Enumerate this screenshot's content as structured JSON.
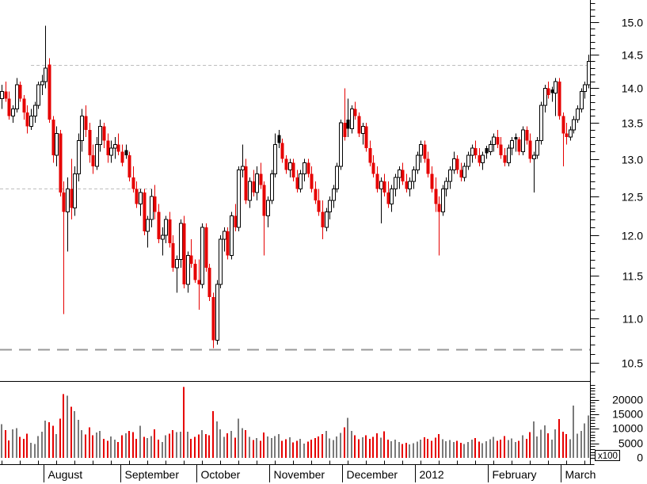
{
  "colors": {
    "background": "#ffffff",
    "axis": "#000000",
    "up_body_fill": "#ffffff",
    "up_body_border": "#000000",
    "down_body": "#e60000",
    "neutral_down_body": "#000000",
    "volume_up": "#7a7a7a",
    "volume_down": "#e60000",
    "dotted_level": "#bdbdbd",
    "dashed_level": "#999999"
  },
  "chart_data": {
    "type": "candlestick",
    "title": "",
    "price_axis": {
      "side": "right",
      "scale": "log",
      "major_labels": [
        15.0,
        14.5,
        14.0,
        13.5,
        13.0,
        12.5,
        12.0,
        11.5,
        11.0,
        10.5
      ],
      "major_step": 0.5,
      "minor_step": 0.1,
      "visible_range": [
        10.31,
        15.36
      ]
    },
    "volume_axis": {
      "major_labels": [
        20000,
        15000,
        10000,
        5000,
        0
      ],
      "major_step": 5000,
      "minor_step": 1000,
      "unit_label": "x100"
    },
    "x_axis": {
      "minor_tick_every_candles": 5,
      "months": [
        {
          "label": "August",
          "start": 12
        },
        {
          "label": "September",
          "start": 33
        },
        {
          "label": "October",
          "start": 54
        },
        {
          "label": "November",
          "start": 74
        },
        {
          "label": "December",
          "start": 94
        },
        {
          "label": "2012",
          "start": 114
        },
        {
          "label": "February",
          "start": 134
        },
        {
          "label": "March",
          "start": 154
        }
      ]
    },
    "levels": [
      {
        "price": 14.35,
        "style": "dotted",
        "start_index": 8,
        "end_index": null
      },
      {
        "price": 12.6,
        "style": "dotted",
        "start_index": 0,
        "end_index": 41
      },
      {
        "price": 10.65,
        "style": "dashed",
        "start_index": 0,
        "end_index": null
      }
    ],
    "columns": [
      "open",
      "high",
      "low",
      "close",
      "volume_x100"
    ],
    "candles": [
      [
        13.85,
        14.05,
        13.7,
        13.95,
        11500
      ],
      [
        13.95,
        14.1,
        13.8,
        13.85,
        9500
      ],
      [
        13.85,
        13.95,
        13.55,
        13.6,
        6000
      ],
      [
        13.6,
        13.75,
        13.5,
        13.7,
        9800
      ],
      [
        13.7,
        14.15,
        13.65,
        14.05,
        10200
      ],
      [
        14.05,
        14.1,
        13.8,
        13.85,
        7200
      ],
      [
        13.85,
        13.9,
        13.55,
        13.65,
        6500
      ],
      [
        13.65,
        13.75,
        13.35,
        13.45,
        8300
      ],
      [
        13.45,
        13.7,
        13.4,
        13.6,
        5200
      ],
      [
        13.6,
        13.8,
        13.5,
        13.75,
        4800
      ],
      [
        13.75,
        14.1,
        13.7,
        14.05,
        7500
      ],
      [
        14.05,
        14.2,
        13.9,
        14.1,
        9000
      ],
      [
        14.1,
        14.95,
        14.0,
        14.3,
        12800
      ],
      [
        14.35,
        14.45,
        13.5,
        13.55,
        12200
      ],
      [
        13.55,
        13.6,
        12.95,
        13.05,
        11000
      ],
      [
        13.05,
        13.45,
        12.9,
        13.35,
        8200
      ],
      [
        13.35,
        13.4,
        12.5,
        12.55,
        13500
      ],
      [
        12.55,
        12.7,
        11.05,
        12.3,
        21900
      ],
      [
        12.3,
        12.75,
        11.8,
        12.6,
        21300
      ],
      [
        12.6,
        13.0,
        12.2,
        12.35,
        17500
      ],
      [
        12.35,
        12.9,
        12.25,
        12.8,
        16000
      ],
      [
        12.8,
        13.35,
        12.7,
        13.25,
        13000
      ],
      [
        13.25,
        13.7,
        13.1,
        13.6,
        9500
      ],
      [
        13.6,
        13.75,
        13.3,
        13.4,
        8000
      ],
      [
        13.4,
        13.5,
        12.95,
        13.05,
        10500
      ],
      [
        13.05,
        13.2,
        12.8,
        12.9,
        7800
      ],
      [
        12.9,
        13.3,
        12.85,
        13.2,
        8700
      ],
      [
        13.2,
        13.55,
        13.1,
        13.45,
        9200
      ],
      [
        13.45,
        13.5,
        13.15,
        13.25,
        6500
      ],
      [
        13.25,
        13.35,
        12.95,
        13.05,
        5800
      ],
      [
        13.05,
        13.25,
        12.95,
        13.15,
        7400
      ],
      [
        13.15,
        13.3,
        13.0,
        13.2,
        6200
      ],
      [
        13.2,
        13.35,
        13.05,
        13.1,
        5500
      ],
      [
        13.1,
        13.2,
        12.9,
        12.95,
        7800
      ],
      [
        13.12,
        13.2,
        13.0,
        13.05,
        8500
      ],
      [
        13.05,
        13.1,
        12.7,
        12.75,
        9200
      ],
      [
        12.75,
        12.9,
        12.55,
        12.6,
        8800
      ],
      [
        12.6,
        12.7,
        12.35,
        12.4,
        6500
      ],
      [
        12.4,
        12.6,
        12.25,
        12.55,
        11000
      ],
      [
        12.55,
        12.6,
        12.0,
        12.05,
        7200
      ],
      [
        12.05,
        12.25,
        11.85,
        12.2,
        6800
      ],
      [
        12.2,
        12.6,
        12.1,
        12.5,
        7500
      ],
      [
        12.5,
        12.65,
        12.2,
        12.3,
        9800
      ],
      [
        12.3,
        12.4,
        11.9,
        11.95,
        6200
      ],
      [
        11.95,
        12.1,
        11.75,
        12.0,
        5400
      ],
      [
        12.0,
        12.25,
        11.9,
        12.2,
        7800
      ],
      [
        12.2,
        12.3,
        11.85,
        11.9,
        8300
      ],
      [
        11.9,
        12.0,
        11.55,
        11.6,
        9500
      ],
      [
        11.6,
        11.75,
        11.3,
        11.7,
        8800
      ],
      [
        11.7,
        12.2,
        11.6,
        12.15,
        9000
      ],
      [
        12.15,
        12.25,
        11.35,
        11.4,
        24300
      ],
      [
        11.4,
        11.8,
        11.3,
        11.75,
        9000
      ],
      [
        11.75,
        11.95,
        11.6,
        11.65,
        6500
      ],
      [
        11.65,
        11.7,
        11.42,
        11.45,
        7200
      ],
      [
        11.45,
        11.7,
        11.1,
        11.4,
        8000
      ],
      [
        11.4,
        12.15,
        11.35,
        12.1,
        9500
      ],
      [
        12.1,
        12.15,
        11.55,
        11.6,
        8200
      ],
      [
        11.6,
        11.65,
        11.2,
        11.25,
        7800
      ],
      [
        11.25,
        11.3,
        10.66,
        10.75,
        16000
      ],
      [
        10.75,
        11.45,
        10.7,
        11.4,
        12500
      ],
      [
        11.4,
        12.0,
        11.35,
        11.95,
        9800
      ],
      [
        11.95,
        12.1,
        11.8,
        12.05,
        7200
      ],
      [
        12.05,
        12.1,
        11.7,
        11.75,
        8500
      ],
      [
        11.75,
        12.3,
        11.7,
        12.25,
        9200
      ],
      [
        12.25,
        12.4,
        12.05,
        12.1,
        7000
      ],
      [
        12.1,
        12.9,
        12.05,
        12.85,
        13500
      ],
      [
        12.85,
        13.2,
        12.75,
        12.9,
        10200
      ],
      [
        12.9,
        13.0,
        12.4,
        12.45,
        9500
      ],
      [
        12.45,
        12.75,
        12.35,
        12.7,
        7200
      ],
      [
        12.7,
        12.85,
        12.5,
        12.55,
        6100
      ],
      [
        12.55,
        12.9,
        12.45,
        12.8,
        6800
      ],
      [
        12.8,
        12.95,
        12.6,
        12.65,
        5900
      ],
      [
        12.65,
        12.7,
        11.75,
        12.25,
        8700
      ],
      [
        12.25,
        12.5,
        12.1,
        12.45,
        7400
      ],
      [
        12.45,
        12.85,
        12.4,
        12.8,
        6800
      ],
      [
        12.8,
        13.35,
        12.75,
        13.2,
        7500
      ],
      [
        13.33,
        13.4,
        13.15,
        13.22,
        8200
      ],
      [
        13.22,
        13.28,
        12.95,
        13.0,
        5900
      ],
      [
        13.0,
        13.05,
        12.8,
        12.85,
        6400
      ],
      [
        12.85,
        13.0,
        12.75,
        12.95,
        7100
      ],
      [
        12.95,
        13.0,
        12.7,
        12.75,
        5300
      ],
      [
        12.75,
        12.85,
        12.55,
        12.6,
        5800
      ],
      [
        12.6,
        12.85,
        12.55,
        12.8,
        6500
      ],
      [
        12.8,
        13.0,
        12.7,
        12.95,
        4900
      ],
      [
        12.95,
        13.0,
        12.75,
        12.8,
        5600
      ],
      [
        12.8,
        12.9,
        12.55,
        12.6,
        6200
      ],
      [
        12.6,
        12.7,
        12.4,
        12.45,
        6800
      ],
      [
        12.45,
        12.6,
        12.25,
        12.3,
        7400
      ],
      [
        12.3,
        12.45,
        11.95,
        12.1,
        8100
      ],
      [
        12.1,
        12.35,
        12.05,
        12.3,
        9200
      ],
      [
        12.3,
        12.5,
        12.2,
        12.45,
        6700
      ],
      [
        12.45,
        12.65,
        12.35,
        12.6,
        6100
      ],
      [
        12.6,
        12.95,
        12.55,
        12.9,
        7300
      ],
      [
        12.9,
        13.55,
        12.85,
        13.5,
        8600
      ],
      [
        13.5,
        14.0,
        13.25,
        13.3,
        10500
      ],
      [
        13.55,
        13.85,
        13.3,
        13.42,
        13800
      ],
      [
        13.42,
        13.75,
        13.35,
        13.7,
        9200
      ],
      [
        13.7,
        13.8,
        13.55,
        13.6,
        7800
      ],
      [
        13.6,
        13.65,
        13.3,
        13.35,
        6400
      ],
      [
        13.35,
        13.5,
        13.2,
        13.45,
        7100
      ],
      [
        13.45,
        13.5,
        13.1,
        13.15,
        7800
      ],
      [
        13.15,
        13.25,
        12.9,
        12.95,
        6500
      ],
      [
        12.95,
        13.05,
        12.75,
        12.8,
        7200
      ],
      [
        12.8,
        12.9,
        12.55,
        12.6,
        8400
      ],
      [
        12.6,
        12.75,
        12.15,
        12.7,
        7000
      ],
      [
        12.7,
        12.8,
        12.5,
        12.55,
        9100
      ],
      [
        12.55,
        12.7,
        12.35,
        12.4,
        6300
      ],
      [
        12.4,
        12.65,
        12.3,
        12.6,
        5700
      ],
      [
        12.6,
        12.8,
        12.5,
        12.75,
        6200
      ],
      [
        12.75,
        12.9,
        12.6,
        12.85,
        5400
      ],
      [
        12.85,
        12.95,
        12.65,
        12.7,
        4800
      ],
      [
        12.7,
        12.8,
        12.55,
        12.6,
        5200
      ],
      [
        12.6,
        12.75,
        12.5,
        12.7,
        4600
      ],
      [
        12.7,
        12.9,
        12.6,
        12.85,
        5000
      ],
      [
        12.85,
        13.1,
        12.8,
        13.05,
        5600
      ],
      [
        13.05,
        13.25,
        12.95,
        13.2,
        6300
      ],
      [
        13.2,
        13.25,
        12.95,
        13.0,
        7100
      ],
      [
        13.0,
        13.1,
        12.75,
        12.8,
        6500
      ],
      [
        12.8,
        12.9,
        12.55,
        12.6,
        5800
      ],
      [
        12.6,
        12.75,
        12.3,
        12.4,
        6900
      ],
      [
        12.4,
        12.5,
        11.75,
        12.3,
        8200
      ],
      [
        12.3,
        12.65,
        12.25,
        12.6,
        6400
      ],
      [
        12.6,
        12.75,
        12.5,
        12.7,
        5700
      ],
      [
        12.7,
        12.9,
        12.6,
        12.85,
        6100
      ],
      [
        12.85,
        13.1,
        12.8,
        13.0,
        5400
      ],
      [
        13.0,
        13.05,
        12.8,
        12.85,
        5900
      ],
      [
        12.85,
        12.95,
        12.7,
        12.75,
        5200
      ],
      [
        12.75,
        12.95,
        12.7,
        12.9,
        4800
      ],
      [
        12.9,
        13.1,
        12.85,
        13.05,
        5500
      ],
      [
        13.05,
        13.2,
        12.95,
        13.15,
        6200
      ],
      [
        13.15,
        13.25,
        13.0,
        13.05,
        6800
      ],
      [
        13.05,
        13.15,
        12.9,
        12.95,
        5600
      ],
      [
        12.95,
        13.1,
        12.85,
        13.05,
        5100
      ],
      [
        13.15,
        13.18,
        13.0,
        13.08,
        5700
      ],
      [
        13.1,
        13.25,
        13.05,
        13.2,
        6400
      ],
      [
        13.2,
        13.35,
        13.1,
        13.3,
        7200
      ],
      [
        13.3,
        13.4,
        13.15,
        13.2,
        5800
      ],
      [
        13.2,
        13.3,
        13.0,
        13.05,
        6300
      ],
      [
        13.05,
        13.15,
        12.9,
        12.95,
        7500
      ],
      [
        12.95,
        13.2,
        12.9,
        13.15,
        6100
      ],
      [
        13.15,
        13.3,
        13.05,
        13.25,
        6700
      ],
      [
        13.3,
        13.35,
        13.1,
        13.27,
        5400
      ],
      [
        13.27,
        13.3,
        13.05,
        13.1,
        5900
      ],
      [
        13.1,
        13.45,
        13.05,
        13.4,
        7800
      ],
      [
        13.4,
        13.45,
        13.2,
        13.25,
        6500
      ],
      [
        13.25,
        13.35,
        12.95,
        13.0,
        8800
      ],
      [
        13.0,
        13.1,
        12.55,
        13.05,
        12500
      ],
      [
        13.05,
        13.3,
        13.0,
        13.25,
        7400
      ],
      [
        13.25,
        13.8,
        13.2,
        13.75,
        9600
      ],
      [
        13.75,
        14.05,
        13.65,
        14.0,
        11200
      ],
      [
        14.0,
        14.1,
        13.85,
        13.9,
        8500
      ],
      [
        13.98,
        14.02,
        13.8,
        13.93,
        6200
      ],
      [
        13.93,
        14.15,
        13.6,
        14.1,
        9800
      ],
      [
        14.1,
        14.15,
        13.55,
        13.6,
        13400
      ],
      [
        13.6,
        13.65,
        12.9,
        13.35,
        9000
      ],
      [
        13.35,
        13.5,
        13.2,
        13.3,
        8200
      ],
      [
        13.3,
        13.45,
        13.25,
        13.4,
        6400
      ],
      [
        13.4,
        13.6,
        13.35,
        13.55,
        17900
      ],
      [
        13.55,
        13.75,
        13.5,
        13.7,
        8300
      ],
      [
        13.7,
        14.0,
        13.65,
        13.95,
        9300
      ],
      [
        13.95,
        14.1,
        13.85,
        14.05,
        11800
      ],
      [
        14.05,
        14.5,
        14.0,
        14.4,
        14500
      ]
    ]
  }
}
